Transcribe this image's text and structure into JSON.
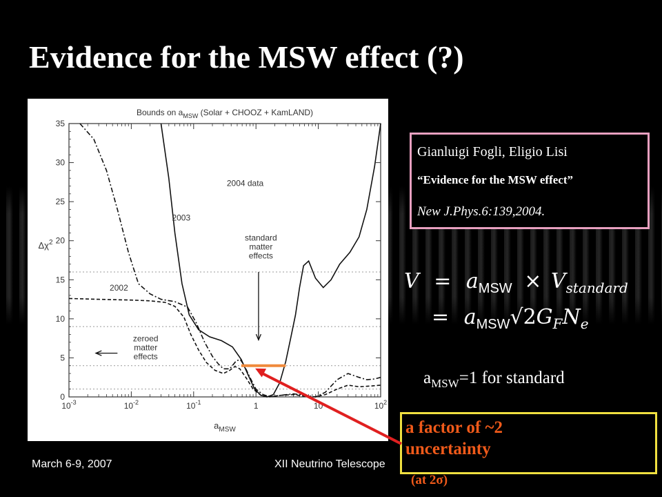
{
  "slide": {
    "title": "Evidence for the MSW effect (?)",
    "footer_date": "March 6-9, 2007",
    "footer_conference": "XII Neutrino Telescope"
  },
  "reference": {
    "authors": "Gianluigi Fogli, Eligio Lisi",
    "paper_title": "“Evidence for the MSW effect”",
    "journal": "New J.Phys.6:139,2004."
  },
  "formula": {
    "line1_lhs": "V",
    "line1_eq": "=",
    "line1_a": "a",
    "line1_a_sub": "MSW",
    "line1_times": "×",
    "line1_v": "V",
    "line1_v_sub": "standard",
    "line2_eq": "=",
    "line2_a": "a",
    "line2_a_sub": "MSW",
    "line2_sqrt": "√2",
    "line2_g": "G",
    "line2_g_sub": "F",
    "line2_n": "N",
    "line2_n_sub": "e"
  },
  "standard_note": {
    "prefix": "a",
    "sub": "MSW",
    "suffix": "=1 for standard"
  },
  "factor_note": {
    "line1": "a factor of ~2",
    "line2": "uncertainty",
    "line3": "(at 2σ)",
    "arrow_color": "#e02020",
    "bar_color": "#f08a3c"
  },
  "chart_data": {
    "type": "line",
    "title": "Bounds on a_MSW (Solar + CHOOZ + KamLAND)",
    "title_main": "Bounds on a",
    "title_sub": "MSW",
    "title_rest": " (Solar + CHOOZ + KamLAND)",
    "xlabel_main": "a",
    "xlabel_sub": "MSW",
    "ylabel_main": "Δχ",
    "ylabel_sup": "2",
    "x_scale": "log",
    "xlim": [
      0.001,
      100
    ],
    "ylim": [
      0,
      35
    ],
    "x_ticks": [
      {
        "v": 0.001,
        "base": "10",
        "exp": "-3"
      },
      {
        "v": 0.01,
        "base": "10",
        "exp": "-2"
      },
      {
        "v": 0.1,
        "base": "10",
        "exp": "-1"
      },
      {
        "v": 1,
        "base": "1",
        "exp": ""
      },
      {
        "v": 10,
        "base": "10",
        "exp": ""
      },
      {
        "v": 100,
        "base": "10",
        "exp": "2"
      }
    ],
    "y_ticks": [
      0,
      5,
      10,
      15,
      20,
      25,
      30,
      35
    ],
    "sigma_gridlines": [
      1,
      4,
      9,
      16
    ],
    "series": [
      {
        "name": "2004 data",
        "style": "solid",
        "points": [
          [
            0.03,
            35
          ],
          [
            0.04,
            28
          ],
          [
            0.05,
            21
          ],
          [
            0.065,
            14.5
          ],
          [
            0.085,
            10.5
          ],
          [
            0.12,
            8.6
          ],
          [
            0.18,
            7.7
          ],
          [
            0.28,
            7.2
          ],
          [
            0.42,
            6.4
          ],
          [
            0.58,
            4.8
          ],
          [
            0.75,
            2.8
          ],
          [
            0.95,
            1.0
          ],
          [
            1.2,
            0.2
          ],
          [
            1.5,
            0
          ],
          [
            1.9,
            0.3
          ],
          [
            2.4,
            1.8
          ],
          [
            3.0,
            4.5
          ],
          [
            3.6,
            7.5
          ],
          [
            4.3,
            10.5
          ],
          [
            5.0,
            14.0
          ],
          [
            5.8,
            16.8
          ],
          [
            7.0,
            17.4
          ],
          [
            9.0,
            15.2
          ],
          [
            12,
            14.0
          ],
          [
            16,
            15.0
          ],
          [
            22,
            17.0
          ],
          [
            32,
            18.5
          ],
          [
            45,
            20.5
          ],
          [
            60,
            24.0
          ],
          [
            80,
            29.5
          ],
          [
            100,
            35
          ]
        ]
      },
      {
        "name": "2003",
        "style": "dash-dot",
        "points": [
          [
            0.0015,
            35
          ],
          [
            0.0025,
            33
          ],
          [
            0.004,
            29
          ],
          [
            0.006,
            24
          ],
          [
            0.009,
            18.5
          ],
          [
            0.013,
            14.5
          ],
          [
            0.02,
            13.2
          ],
          [
            0.03,
            12.5
          ],
          [
            0.05,
            12.2
          ],
          [
            0.08,
            11.5
          ],
          [
            0.11,
            9.5
          ],
          [
            0.15,
            7.0
          ],
          [
            0.2,
            5.2
          ],
          [
            0.25,
            4.2
          ],
          [
            0.3,
            3.6
          ],
          [
            0.38,
            3.6
          ],
          [
            0.48,
            4.6
          ],
          [
            0.56,
            4.8
          ],
          [
            0.65,
            4.0
          ],
          [
            0.8,
            2.5
          ],
          [
            1.0,
            1.0
          ],
          [
            1.3,
            0.3
          ],
          [
            1.7,
            0
          ],
          [
            2.5,
            0.2
          ],
          [
            4,
            0.4
          ],
          [
            6,
            0.2
          ],
          [
            9,
            0
          ],
          [
            13,
            0.6
          ],
          [
            20,
            2.2
          ],
          [
            30,
            3.0
          ],
          [
            45,
            2.5
          ],
          [
            60,
            2.2
          ],
          [
            80,
            2.3
          ],
          [
            100,
            2.5
          ]
        ]
      },
      {
        "name": "2002",
        "style": "dashed",
        "points": [
          [
            0.001,
            12.6
          ],
          [
            0.003,
            12.5
          ],
          [
            0.01,
            12.4
          ],
          [
            0.02,
            12.3
          ],
          [
            0.035,
            12.1
          ],
          [
            0.05,
            11.6
          ],
          [
            0.07,
            10.2
          ],
          [
            0.09,
            8.0
          ],
          [
            0.12,
            6.0
          ],
          [
            0.16,
            4.4
          ],
          [
            0.22,
            3.4
          ],
          [
            0.3,
            3.0
          ],
          [
            0.38,
            3.4
          ],
          [
            0.46,
            3.9
          ],
          [
            0.55,
            3.6
          ],
          [
            0.7,
            2.4
          ],
          [
            0.9,
            1.0
          ],
          [
            1.2,
            0.2
          ],
          [
            1.6,
            0
          ],
          [
            2.5,
            0.2
          ],
          [
            4,
            0.3
          ],
          [
            6,
            0.1
          ],
          [
            9,
            0
          ],
          [
            13,
            0.3
          ],
          [
            20,
            1.0
          ],
          [
            30,
            1.5
          ],
          [
            45,
            1.3
          ],
          [
            70,
            1.4
          ],
          [
            100,
            1.5
          ]
        ]
      }
    ],
    "annotations": [
      {
        "text": "2004 data",
        "x": 0.34,
        "y": 27.0
      },
      {
        "text": "2003",
        "x": 0.045,
        "y": 22.6
      },
      {
        "text": "2002",
        "x": 0.0045,
        "y": 13.6
      },
      {
        "lines": [
          "standard",
          "matter",
          "effects"
        ],
        "x": 1.2,
        "y": 20.0
      },
      {
        "lines": [
          "zeroed",
          "matter",
          "effects"
        ],
        "x": 0.017,
        "y": 7.1
      }
    ],
    "arrows": [
      {
        "name": "standard-matter-effects-arrow",
        "from": [
          1.1,
          16.0
        ],
        "to": [
          1.1,
          7.3
        ]
      },
      {
        "name": "zeroed-matter-effects-arrow",
        "from": [
          0.006,
          5.6
        ],
        "to": [
          0.0027,
          5.6
        ]
      }
    ],
    "uncertainty_band": {
      "x_from": 0.58,
      "x_to": 3.0,
      "y": 4.0
    }
  }
}
